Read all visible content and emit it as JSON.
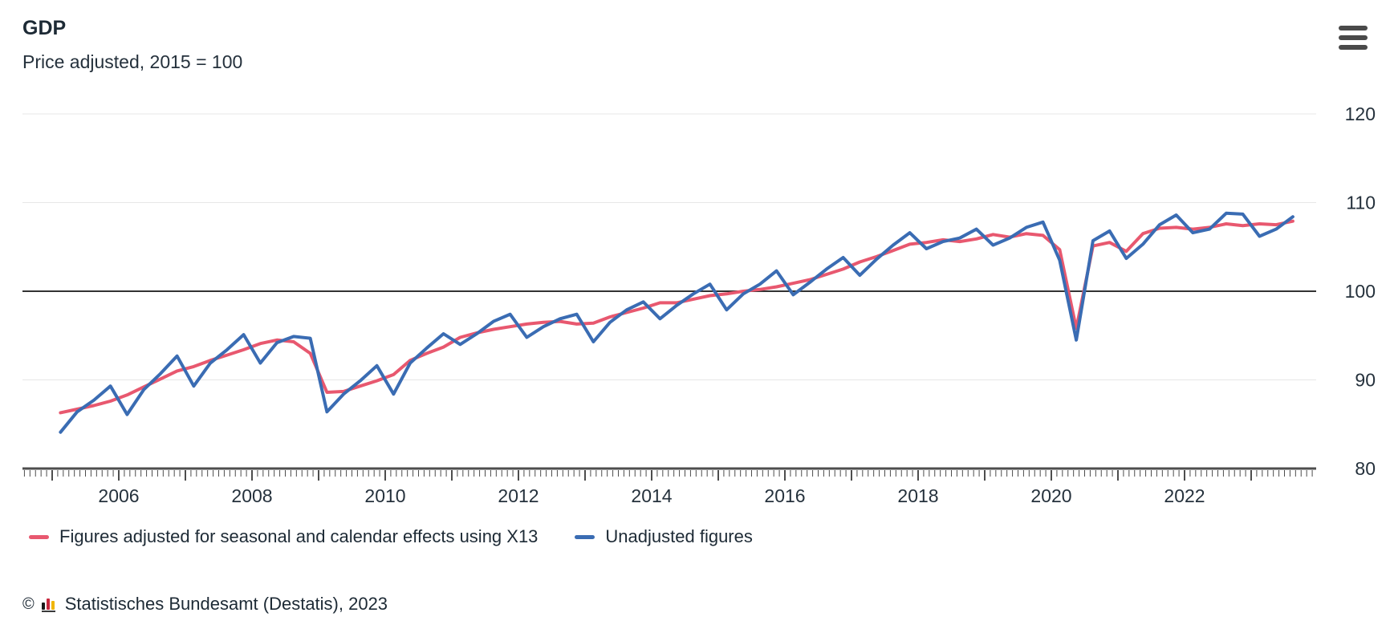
{
  "header": {
    "title": "GDP",
    "subtitle": "Price adjusted, 2015 = 100"
  },
  "menu": {
    "icon": "hamburger-menu-icon"
  },
  "chart_data": {
    "type": "line",
    "title": "GDP",
    "subtitle": "Price adjusted, 2015 = 100",
    "frequency": "quarterly",
    "start_year": 2005,
    "start_quarter": 1,
    "end_year": 2023,
    "end_quarter": 3,
    "ylim": [
      80,
      120
    ],
    "y_ticks": [
      80,
      90,
      100,
      110,
      120
    ],
    "reference_line": 100,
    "x_tick_labels": [
      "2006",
      "2008",
      "2010",
      "2012",
      "2014",
      "2016",
      "2018",
      "2020",
      "2022"
    ],
    "grid": "horizontal",
    "legend_position": "bottom-left",
    "series": [
      {
        "name": "Figures adjusted for seasonal and calendar effects using X13",
        "color": "#e8586f",
        "values": [
          86.3,
          86.7,
          87.1,
          87.6,
          88.3,
          89.2,
          90.1,
          91.0,
          91.5,
          92.2,
          92.8,
          93.4,
          94.1,
          94.5,
          94.3,
          93.0,
          88.6,
          88.7,
          89.3,
          89.9,
          90.6,
          92.2,
          93.0,
          93.7,
          94.8,
          95.3,
          95.7,
          96.0,
          96.3,
          96.5,
          96.6,
          96.3,
          96.4,
          97.1,
          97.6,
          98.1,
          98.7,
          98.7,
          99.1,
          99.5,
          99.7,
          100.0,
          100.2,
          100.5,
          100.9,
          101.3,
          101.9,
          102.5,
          103.3,
          103.9,
          104.6,
          105.3,
          105.5,
          105.8,
          105.6,
          105.9,
          106.4,
          106.1,
          106.5,
          106.3,
          104.7,
          95.8,
          105.1,
          105.5,
          104.5,
          106.5,
          107.1,
          107.2,
          107.0,
          107.2,
          107.6,
          107.4,
          107.6,
          107.5,
          107.9
        ]
      },
      {
        "name": "Unadjusted figures",
        "color": "#3a6cb3",
        "values": [
          84.1,
          86.4,
          87.7,
          89.3,
          86.1,
          88.9,
          90.7,
          92.7,
          89.3,
          91.9,
          93.4,
          95.1,
          91.9,
          94.2,
          94.9,
          94.7,
          86.4,
          88.4,
          89.9,
          91.6,
          88.4,
          91.9,
          93.6,
          95.2,
          94.0,
          95.2,
          96.6,
          97.4,
          94.8,
          96.0,
          96.9,
          97.4,
          94.3,
          96.5,
          97.9,
          98.8,
          96.9,
          98.4,
          99.7,
          100.8,
          97.9,
          99.7,
          100.8,
          102.3,
          99.6,
          101.0,
          102.5,
          103.8,
          101.8,
          103.6,
          105.2,
          106.6,
          104.8,
          105.6,
          106.0,
          107.0,
          105.2,
          106.0,
          107.2,
          107.8,
          103.5,
          94.5,
          105.7,
          106.8,
          103.7,
          105.3,
          107.5,
          108.6,
          106.6,
          107.0,
          108.8,
          108.7,
          106.2,
          107.0,
          108.4
        ]
      }
    ]
  },
  "footer": {
    "copyright": "©",
    "source": "Statistisches Bundesamt (Destatis), 2023",
    "logo_colors": [
      "#1a1a1a",
      "#c8273d",
      "#f0b500"
    ]
  }
}
